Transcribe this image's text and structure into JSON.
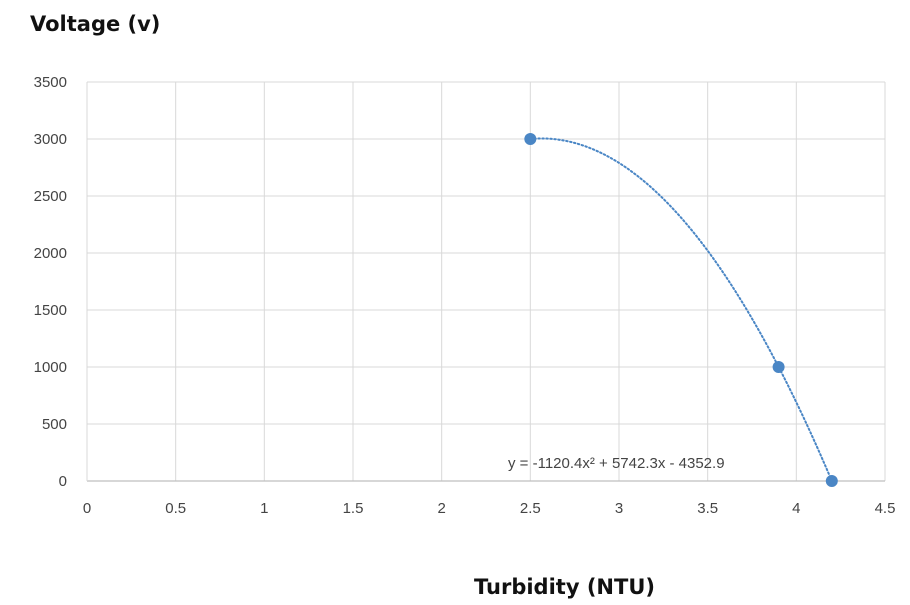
{
  "chart_data": {
    "type": "scatter",
    "ylabel": "Voltage (v)",
    "xlabel": "Turbidity (NTU)",
    "xlim": [
      0,
      4.5
    ],
    "ylim": [
      0,
      3500
    ],
    "xticks": [
      "0",
      "0.5",
      "1",
      "1.5",
      "2",
      "2.5",
      "3",
      "3.5",
      "4",
      "4.5"
    ],
    "yticks": [
      "0",
      "500",
      "1000",
      "1500",
      "2000",
      "2500",
      "3000",
      "3500"
    ],
    "grid": true,
    "series": [
      {
        "x": [
          2.5,
          3.9,
          4.2
        ],
        "y": [
          3000,
          1000,
          0
        ],
        "color": "#4a86c5"
      }
    ],
    "trendline": {
      "type": "polynomial",
      "order": 2,
      "coefficients": [
        -1120.4,
        5742.3,
        -4352.9
      ],
      "equation": "y = -1120.4x² + 5742.3x - 4352.9",
      "style": "dotted",
      "color": "#4a86c5"
    }
  }
}
